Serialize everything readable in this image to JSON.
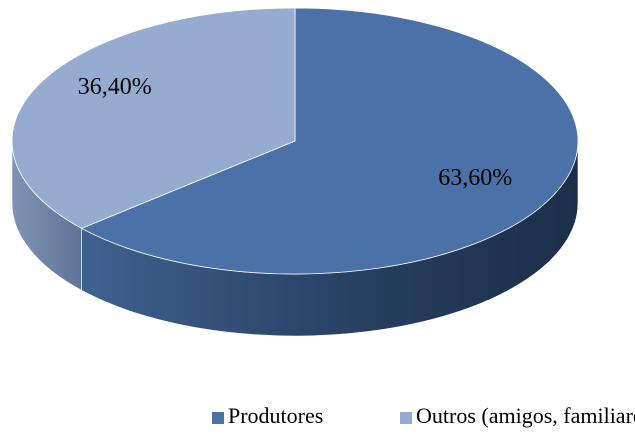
{
  "chart_data": {
    "type": "pie",
    "categories": [
      "Produtores",
      "Outros (amigos, familiares, presentes)"
    ],
    "values": [
      63.6,
      36.4
    ],
    "value_labels": [
      "63,60%",
      "36,40%"
    ],
    "colors": [
      "#4a72a8",
      "#95abd0"
    ],
    "legend": "bottom"
  }
}
